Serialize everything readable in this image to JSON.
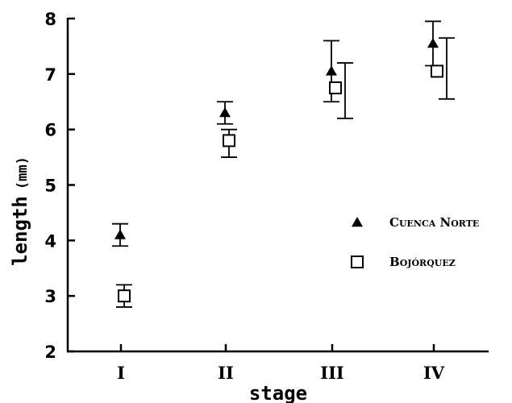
{
  "chart_data": {
    "type": "scatter",
    "categories": [
      "I",
      "II",
      "III",
      "IV"
    ],
    "xlabel": "stage",
    "ylabel": "length",
    "ylabel_unit": "(mm)",
    "ylim": [
      2,
      8
    ],
    "yticks": [
      "2",
      "3",
      "4",
      "5",
      "6",
      "7",
      "8"
    ],
    "grid": false,
    "legend_position": "right",
    "series": [
      {
        "name": "Cuenca Norte",
        "marker": "filled-triangle",
        "values": [
          4.1,
          6.3,
          7.05,
          7.55
        ],
        "err_low": [
          3.9,
          6.1,
          6.5,
          7.15
        ],
        "err_high": [
          4.3,
          6.5,
          7.6,
          7.95
        ]
      },
      {
        "name": "Bojórquez",
        "marker": "open-square",
        "values": [
          3.0,
          5.8,
          6.75,
          7.05
        ],
        "err_low": [
          2.8,
          5.5,
          6.2,
          6.55
        ],
        "err_high": [
          3.2,
          6.0,
          7.2,
          7.65
        ]
      }
    ]
  }
}
